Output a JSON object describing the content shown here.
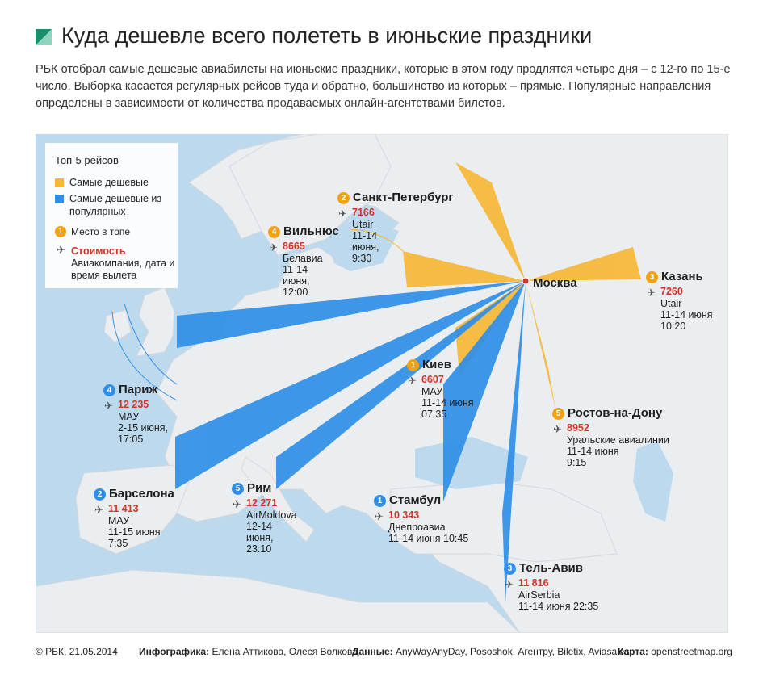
{
  "header": {
    "title": "Куда дешевле всего полететь в июньские праздники",
    "lead": "РБК отобрал самые дешевые авиабилеты на июньские праздники, которые в этом году продлятся четыре дня – с 12-го по 15-е число. Выборка касается регулярных рейсов туда и обратно, большинство из которых – прямые. Популярные направления определены в зависимости от количества продаваемых онлайн-агентствами билетов."
  },
  "colors": {
    "cheapest": "#f7b733",
    "popular": "#2f8fe8",
    "price": "#d3322a",
    "sea": "#bcd9ee",
    "land": "#ebeef0"
  },
  "legend": {
    "title": "Топ-5 рейсов",
    "cheapest": "Самые дешевые",
    "popular": "Самые дешевые из популярных",
    "rank_label": "Место в топе",
    "rank_demo": "1",
    "price_label": "Стоимость",
    "info_label": "Авиакомпания, дата и время вылета"
  },
  "origin": "Москва",
  "cities": {
    "spb": {
      "rank": "2",
      "name": "Санкт-Петербург",
      "price": "7166",
      "airline": "Utair",
      "dates": "11-14 июня, 9:30"
    },
    "vilnius": {
      "rank": "4",
      "name": "Вильнюс",
      "price": "8665",
      "airline": "Белавиа",
      "dates": "11-14 июня, 12:00"
    },
    "kazan": {
      "rank": "3",
      "name": "Казань",
      "price": "7260",
      "airline": "Utair",
      "dates": "11-14 июня 10:20"
    },
    "kiev": {
      "rank": "1",
      "name": "Киев",
      "price": "6607",
      "airline": "МАУ",
      "dates": "11-14 июня 07:35"
    },
    "rostov": {
      "rank": "5",
      "name": "Ростов-на-Дону",
      "price": "8952",
      "airline": "Уральские авиалинии",
      "dates": "11-14 июня 9:15"
    },
    "paris": {
      "rank": "4",
      "name": "Париж",
      "price": "12 235",
      "airline": "МАУ",
      "dates": "2-15 июня, 17:05"
    },
    "barcelona": {
      "rank": "2",
      "name": "Барселона",
      "price": "11 413",
      "airline": "МАУ",
      "dates": "11-15 июня 7:35"
    },
    "rome": {
      "rank": "5",
      "name": "Рим",
      "price": "12 271",
      "airline": "AirMoldova",
      "dates": "12-14 июня, 23:10"
    },
    "istanbul": {
      "rank": "1",
      "name": "Стамбул",
      "price": "10 343",
      "airline": "Днепроавиа",
      "dates": "11-14 июня 10:45"
    },
    "telaviv": {
      "rank": "3",
      "name": "Тель-Авив",
      "price": "11 816",
      "airline": "AirSerbia",
      "dates": "11-14 июня 22:35"
    }
  },
  "footer": {
    "copyright": "© РБК, 21.05.2014",
    "infographic_label": "Инфографика:",
    "infographic": "Елена Аттикова, Олеся Волкова",
    "data_label": "Данные:",
    "data": "AnyWayAnyDay, Pososhok, Агентру, Biletix, Aviasales",
    "map_label": "Карта:",
    "map": "openstreetmap.org"
  }
}
